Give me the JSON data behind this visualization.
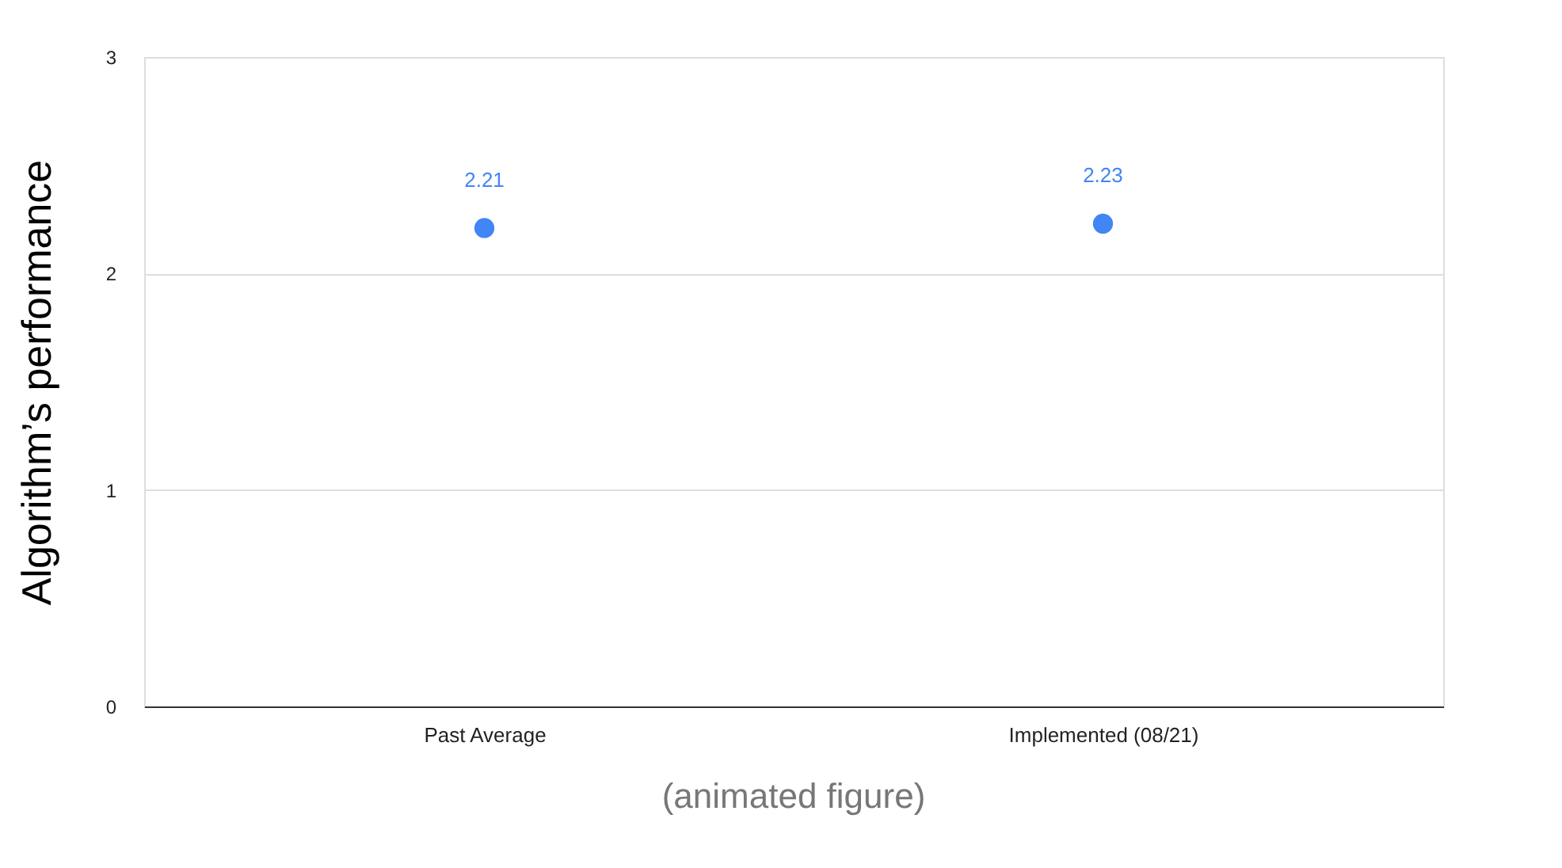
{
  "chart_data": {
    "type": "scatter",
    "categories": [
      "Past Average",
      "Implemented (08/21)"
    ],
    "series": [
      {
        "color": "#4285f4",
        "values": [
          2.21,
          2.23
        ]
      }
    ],
    "ylabel": "Algorithm’s performance",
    "ylim": [
      0,
      3
    ],
    "yticks": [
      0,
      1,
      2,
      3
    ],
    "grid": "y",
    "data_labels": true,
    "marker": "circle",
    "annotations": [
      "(animated figure)"
    ]
  }
}
